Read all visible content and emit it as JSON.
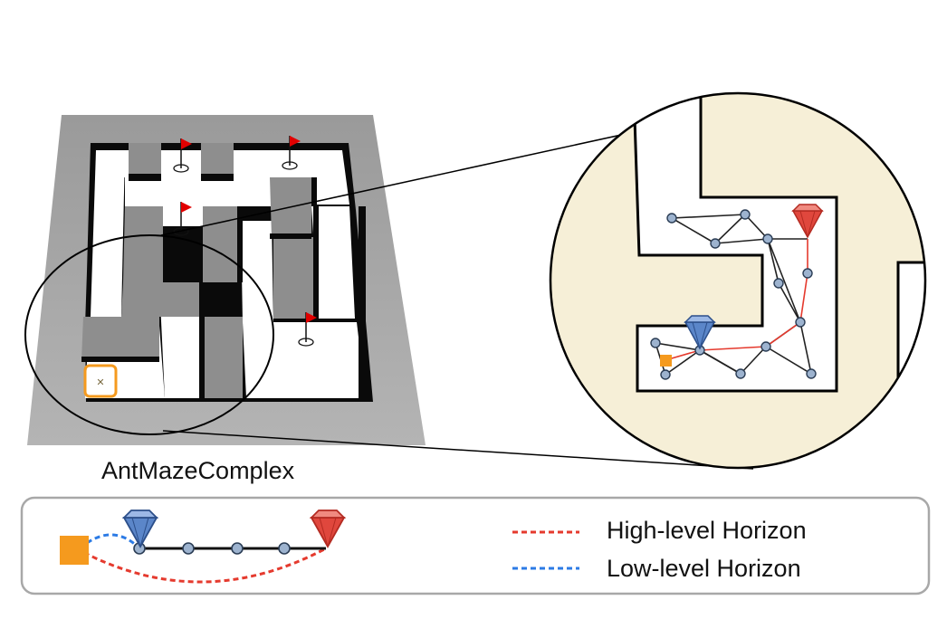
{
  "maze": {
    "name": "AntMazeComplex"
  },
  "legend": {
    "high_level": {
      "label": "High-level Horizon",
      "color": "#e53a2e"
    },
    "low_level": {
      "label": "Low-level Horizon",
      "color": "#2c7be5"
    }
  },
  "colors": {
    "wall_top": "#8f8f8f",
    "wall_side": "#0a0a0a",
    "floor": "#ffffff",
    "zoom_floor": "#f6efd7",
    "start_marker": "#f59a1e",
    "node_fill": "#9db3cf",
    "node_stroke": "#2b3d55",
    "low_goal": "#5b86c9",
    "high_goal": "#e0473d"
  },
  "icons": {
    "goal_flag": "flag-icon",
    "agent_start": "square-icon",
    "subgoal_gem": "gem-icon"
  }
}
